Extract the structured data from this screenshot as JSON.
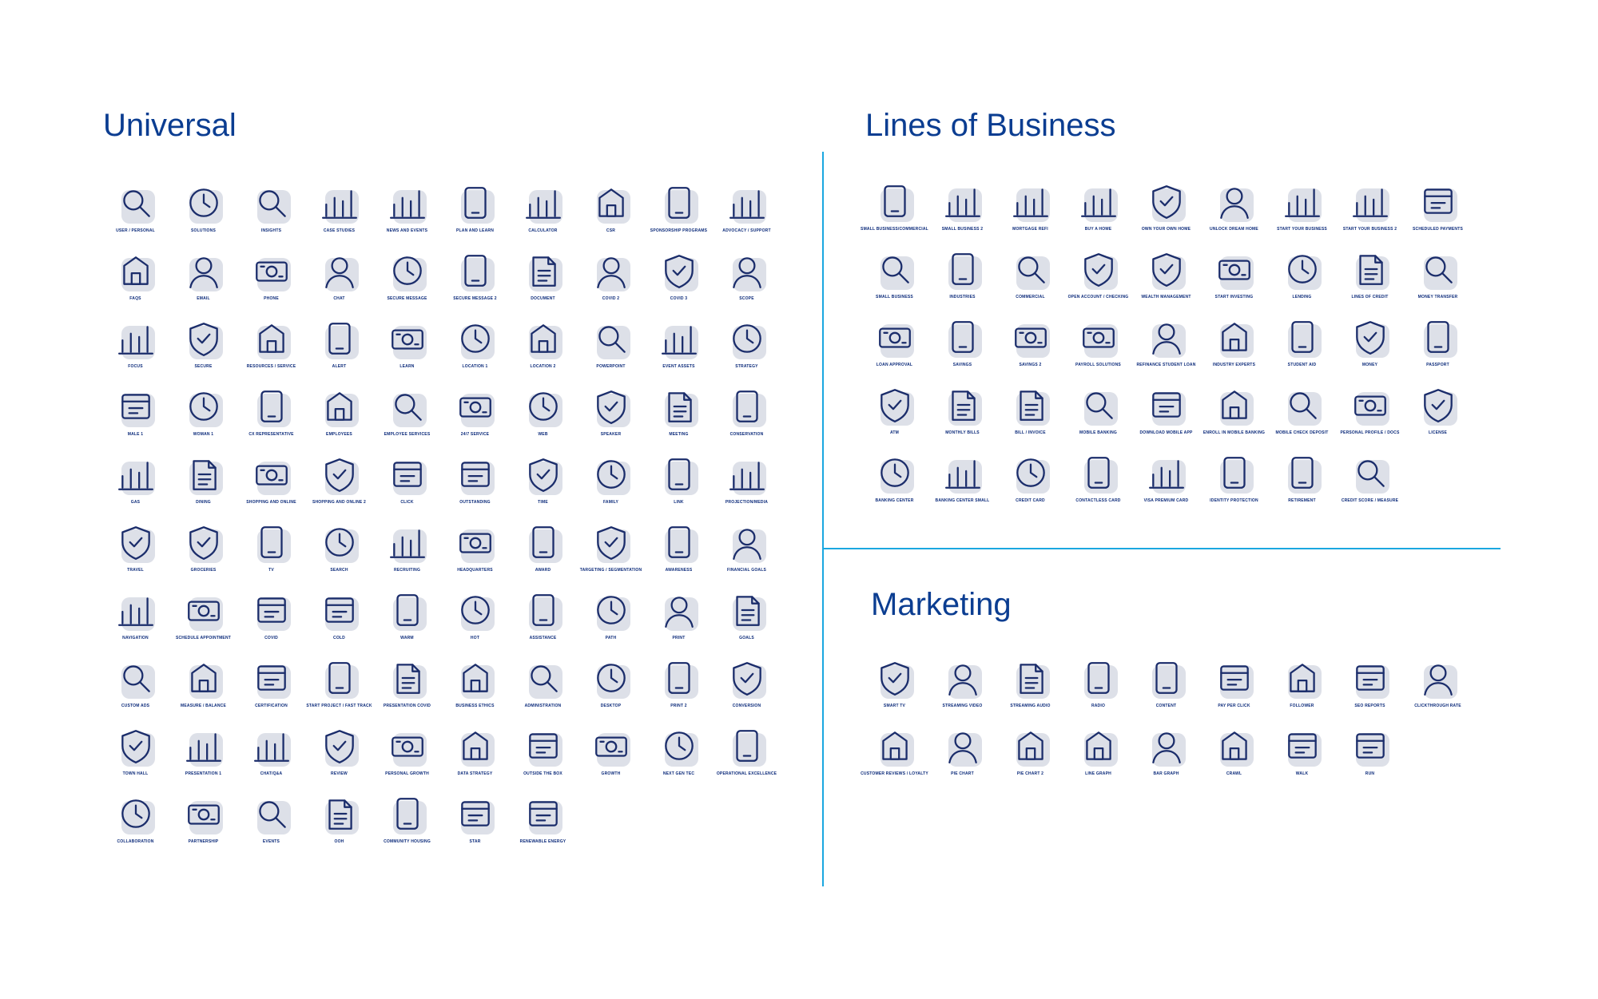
{
  "sections": {
    "universal": {
      "title": "Universal",
      "icons": [
        {
          "label": "USER / PERSONAL",
          "icon": "user-icon"
        },
        {
          "label": "SOLUTIONS",
          "icon": "puzzle-icon"
        },
        {
          "label": "INSIGHTS",
          "icon": "lightbulb-icon"
        },
        {
          "label": "CASE STUDIES",
          "icon": "document-search-icon"
        },
        {
          "label": "NEWS AND EVENTS",
          "icon": "calendar-document-icon"
        },
        {
          "label": "PLAN AND LEARN",
          "icon": "calendar-idea-icon"
        },
        {
          "label": "CALCULATOR",
          "icon": "calculator-icon"
        },
        {
          "label": "CSR",
          "icon": "globe-hand-icon"
        },
        {
          "label": "SPONSORSHIP PROGRAMS",
          "icon": "dollar-hand-icon"
        },
        {
          "label": "ADVOCACY / SUPPORT",
          "icon": "heart-hand-icon"
        },
        {
          "label": "FAQS",
          "icon": "question-bubble-icon"
        },
        {
          "label": "EMAIL",
          "icon": "envelope-icon"
        },
        {
          "label": "PHONE",
          "icon": "smartphone-icon"
        },
        {
          "label": "CHAT",
          "icon": "chat-bubbles-icon"
        },
        {
          "label": "SECURE MESSAGE",
          "icon": "envelope-lock-icon"
        },
        {
          "label": "SECURE MESSAGE 2",
          "icon": "shield-envelope-icon"
        },
        {
          "label": "DOCUMENT",
          "icon": "document-icon"
        },
        {
          "label": "COVID 2",
          "icon": "face-mask-icon"
        },
        {
          "label": "COVID 3",
          "icon": "cough-icon"
        },
        {
          "label": "SCOPE",
          "icon": "scope-icon"
        },
        {
          "label": "FOCUS",
          "icon": "magnifier-icon"
        },
        {
          "label": "SECURE",
          "icon": "shield-check-icon"
        },
        {
          "label": "RESOURCES / SERVICE",
          "icon": "wrench-gear-icon"
        },
        {
          "label": "ALERT",
          "icon": "warning-icon"
        },
        {
          "label": "LEARN",
          "icon": "book-icon"
        },
        {
          "label": "LOCATION 1",
          "icon": "map-pin-icon"
        },
        {
          "label": "LOCATION 2",
          "icon": "location-pin-icon"
        },
        {
          "label": "POWERPOINT",
          "icon": "presentation-screen-icon"
        },
        {
          "label": "EVENT ASSETS",
          "icon": "calendar-icon"
        },
        {
          "label": "STRATEGY",
          "icon": "chess-knight-icon"
        },
        {
          "label": "MALE 1",
          "icon": "man-tie-icon"
        },
        {
          "label": "WOMAN 1",
          "icon": "woman-icon"
        },
        {
          "label": "CX REPRESENTATIVE",
          "icon": "headset-person-icon"
        },
        {
          "label": "EMPLOYEES",
          "icon": "people-icon"
        },
        {
          "label": "EMPLOYEE SERVICES",
          "icon": "person-service-icon"
        },
        {
          "label": "24/7 SERVICE",
          "icon": "clock-24-icon"
        },
        {
          "label": "WEB",
          "icon": "globe-cursor-icon"
        },
        {
          "label": "SPEAKER",
          "icon": "speaker-podium-icon"
        },
        {
          "label": "MEETING",
          "icon": "meeting-icon"
        },
        {
          "label": "CONSERVATION",
          "icon": "shields-icon"
        },
        {
          "label": "GAS",
          "icon": "gas-pump-icon"
        },
        {
          "label": "DINING",
          "icon": "fork-plate-icon"
        },
        {
          "label": "SHOPPING AND ONLINE",
          "icon": "shopping-bag-icon"
        },
        {
          "label": "SHOPPING AND ONLINE 2",
          "icon": "cart-icon"
        },
        {
          "label": "CLICK",
          "icon": "pointer-hand-icon"
        },
        {
          "label": "OUTSTANDING",
          "icon": "thumbs-up-icon"
        },
        {
          "label": "TIME",
          "icon": "clock-icon"
        },
        {
          "label": "FAMILY",
          "icon": "family-icon"
        },
        {
          "label": "LINK",
          "icon": "chain-link-icon"
        },
        {
          "label": "PROJECTION/MEDIA",
          "icon": "projector-icon"
        },
        {
          "label": "TRAVEL",
          "icon": "airplane-icon"
        },
        {
          "label": "GROCERIES",
          "icon": "grocery-bag-icon"
        },
        {
          "label": "TV",
          "icon": "monitor-icon"
        },
        {
          "label": "SEARCH",
          "icon": "search-bar-icon"
        },
        {
          "label": "RECRUITING",
          "icon": "magnifier-person-icon"
        },
        {
          "label": "HEADQUARTERS",
          "icon": "map-marker-icon"
        },
        {
          "label": "AWARD",
          "icon": "award-ribbon-icon"
        },
        {
          "label": "TARGETING / SEGMENTATION",
          "icon": "laptop-target-icon"
        },
        {
          "label": "AWARENESS",
          "icon": "megaphone-icon"
        },
        {
          "label": "FINANCIAL GOALS",
          "icon": "dollar-target-icon"
        },
        {
          "label": "NAVIGATION",
          "icon": "compass-icon"
        },
        {
          "label": "SCHEDULE APPOINTMENT",
          "icon": "calendar-clock-icon"
        },
        {
          "label": "COVID",
          "icon": "virus-icon"
        },
        {
          "label": "COLD",
          "icon": "thermometer-cold-icon"
        },
        {
          "label": "WARM",
          "icon": "thermometer-warm-icon"
        },
        {
          "label": "HOT",
          "icon": "thermometer-hot-icon"
        },
        {
          "label": "ASSISTANCE",
          "icon": "raised-hand-icon"
        },
        {
          "label": "PATH",
          "icon": "signpost-arrows-icon"
        },
        {
          "label": "PRINT",
          "icon": "printed-page-icon"
        },
        {
          "label": "GOALS",
          "icon": "target-icon"
        },
        {
          "label": "CUSTOM ADS",
          "icon": "document-pencil-icon"
        },
        {
          "label": "MEASURE / BALANCE",
          "icon": "scales-icon"
        },
        {
          "label": "CERTIFICATION",
          "icon": "certificate-icon"
        },
        {
          "label": "START PROJECT / FAST TRACK",
          "icon": "rocket-icon"
        },
        {
          "label": "PRESENTATION COVID",
          "icon": "presenter-board-icon"
        },
        {
          "label": "BUSINESS ETHICS",
          "icon": "person-scales-icon"
        },
        {
          "label": "ADMINISTRATION",
          "icon": "gear-person-icon"
        },
        {
          "label": "DESKTOP",
          "icon": "desktop-icon"
        },
        {
          "label": "PRINT 2",
          "icon": "printer-icon"
        },
        {
          "label": "CONVERSION",
          "icon": "gear-cycle-icon"
        },
        {
          "label": "TOWN HALL",
          "icon": "town-hall-icon"
        },
        {
          "label": "PRESENTATION 1",
          "icon": "presentation-icon"
        },
        {
          "label": "CHAT/Q&A",
          "icon": "person-chat-icon"
        },
        {
          "label": "REVIEW",
          "icon": "person-laptop-icon"
        },
        {
          "label": "PERSONAL GROWTH",
          "icon": "person-growth-icon"
        },
        {
          "label": "DATA STRATEGY",
          "icon": "person-pie-chart-icon"
        },
        {
          "label": "OUTSIDE THE BOX",
          "icon": "person-box-icon"
        },
        {
          "label": "GROWTH",
          "icon": "growth-arrow-icon"
        },
        {
          "label": "NEXT GEN TEC",
          "icon": "devices-check-icon"
        },
        {
          "label": "OPERATIONAL EXCELLENCE",
          "icon": "chart-gear-icon"
        },
        {
          "label": "COLLABORATION",
          "icon": "group-cycle-icon"
        },
        {
          "label": "PARTNERSHIP",
          "icon": "handshake-icon"
        },
        {
          "label": "EVENTS",
          "icon": "calendar-grid-icon"
        },
        {
          "label": "OOH",
          "icon": "billboard-ad-icon"
        },
        {
          "label": "COMMUNITY HOUSING",
          "icon": "house-people-icon"
        },
        {
          "label": "STAR",
          "icon": "person-stars-icon"
        },
        {
          "label": "RENEWABLE ENERGY",
          "icon": "lightning-cycle-icon"
        }
      ]
    },
    "lines_of_business": {
      "title": "Lines of Business",
      "icons": [
        {
          "label": "SMALL BUSINESS/COMMERCIAL",
          "icon": "building-icon"
        },
        {
          "label": "SMALL BUSINESS 2",
          "icon": "storefront-icon"
        },
        {
          "label": "MORTGAGE REFI",
          "icon": "house-percent-icon"
        },
        {
          "label": "BUY A HOME",
          "icon": "house-icon"
        },
        {
          "label": "OWN YOUR OWN HOME",
          "icon": "house-key-icon"
        },
        {
          "label": "UNLOCK DREAM HOME",
          "icon": "house-lock-icon"
        },
        {
          "label": "START YOUR BUSINESS",
          "icon": "open-sign-icon"
        },
        {
          "label": "START YOUR BUSINESS 2",
          "icon": "briefcase-icon"
        },
        {
          "label": "SCHEDULED PAYMENTS",
          "icon": "clock-coins-icon"
        },
        {
          "label": "SMALL BUSINESS",
          "icon": "shop-awning-icon"
        },
        {
          "label": "INDUSTRIES",
          "icon": "factory-icon"
        },
        {
          "label": "COMMERCIAL",
          "icon": "tower-icon"
        },
        {
          "label": "OPEN ACCOUNT / CHECKING",
          "icon": "check-icon"
        },
        {
          "label": "WEALTH MANAGEMENT",
          "icon": "cash-cycle-icon"
        },
        {
          "label": "START INVESTING",
          "icon": "dollar-network-icon"
        },
        {
          "label": "LENDING",
          "icon": "hand-dollar-icon"
        },
        {
          "label": "LINES OF CREDIT",
          "icon": "credit-lines-icon"
        },
        {
          "label": "MONEY TRANSFER",
          "icon": "cash-transfer-icon"
        },
        {
          "label": "LOAN APPROVAL",
          "icon": "stamp-coin-icon"
        },
        {
          "label": "SAVINGS",
          "icon": "coin-stack-icon"
        },
        {
          "label": "SAVINGS 2",
          "icon": "piggy-bank-icon"
        },
        {
          "label": "PAYROLL SOLUTIONS",
          "icon": "payroll-icon"
        },
        {
          "label": "REFINANCE STUDENT LOAN",
          "icon": "graduate-cycle-icon"
        },
        {
          "label": "INDUSTRY EXPERTS",
          "icon": "grad-cap-icon"
        },
        {
          "label": "STUDENT AID",
          "icon": "grad-cap-dollar-icon"
        },
        {
          "label": "MONEY",
          "icon": "banknote-icon"
        },
        {
          "label": "PASSPORT",
          "icon": "passport-icon"
        },
        {
          "label": "ATM",
          "icon": "atm-icon"
        },
        {
          "label": "MONTHLY BILLS",
          "icon": "bill-scroll-icon"
        },
        {
          "label": "BILL / INVOICE",
          "icon": "invoice-icon"
        },
        {
          "label": "MOBILE BANKING",
          "icon": "phone-bank-icon"
        },
        {
          "label": "DOWNLOAD MOBILE APP",
          "icon": "phone-download-icon"
        },
        {
          "label": "ENROLL IN MOBILE BANKING",
          "icon": "laptop-bank-icon"
        },
        {
          "label": "MOBILE CHECK DEPOSIT",
          "icon": "phone-check-icon"
        },
        {
          "label": "PERSONAL PROFILE / DOCS",
          "icon": "profile-document-icon"
        },
        {
          "label": "LICENSE",
          "icon": "id-card-icon"
        },
        {
          "label": "BANKING CENTER",
          "icon": "bank-icon"
        },
        {
          "label": "BANKING CENTER SMALL",
          "icon": "bank-small-icon"
        },
        {
          "label": "CREDIT CARD",
          "icon": "credit-card-icon"
        },
        {
          "label": "CONTACTLESS CARD",
          "icon": "contactless-card-icon"
        },
        {
          "label": "VISA PREMIUM CARD",
          "icon": "visa-card-icon"
        },
        {
          "label": "IDENTITY PROTECTION",
          "icon": "fingerprint-icon"
        },
        {
          "label": "RETIREMENT",
          "icon": "nest-egg-icon"
        },
        {
          "label": "CREDIT SCORE / MEASURE",
          "icon": "gauge-icon"
        }
      ]
    },
    "marketing": {
      "title": "Marketing",
      "icons": [
        {
          "label": "SMART TV",
          "icon": "smart-tv-icon"
        },
        {
          "label": "STREAMING VIDEO",
          "icon": "video-play-icon"
        },
        {
          "label": "STREAMING AUDIO",
          "icon": "headphones-icon"
        },
        {
          "label": "RADIO",
          "icon": "microphone-icon"
        },
        {
          "label": "CONTENT",
          "icon": "content-screen-icon"
        },
        {
          "label": "PAY PER CLICK",
          "icon": "click-dollar-icon"
        },
        {
          "label": "FOLLOWER",
          "icon": "follower-bubble-icon"
        },
        {
          "label": "SEO REPORTS",
          "icon": "report-chart-icon"
        },
        {
          "label": "CLICKTHROUGH RATE",
          "icon": "tap-tablet-icon"
        },
        {
          "label": "CUSTOMER REVIEWS / LOYALTY",
          "icon": "thumbs-stars-icon"
        },
        {
          "label": "PIE CHART",
          "icon": "pie-3d-icon"
        },
        {
          "label": "PIE CHART 2",
          "icon": "pie-chart-icon"
        },
        {
          "label": "LINE GRAPH",
          "icon": "line-graph-icon"
        },
        {
          "label": "BAR GRAPH",
          "icon": "bar-graph-icon"
        },
        {
          "label": "CRAWL",
          "icon": "crawl-icon"
        },
        {
          "label": "WALK",
          "icon": "walk-icon"
        },
        {
          "label": "RUN",
          "icon": "run-icon"
        }
      ]
    }
  },
  "colors": {
    "title": "#0b3d91",
    "icon_stroke": "#1b2d6b",
    "icon_shadow": "#dde0e8",
    "divider": "#1aa7e0"
  }
}
